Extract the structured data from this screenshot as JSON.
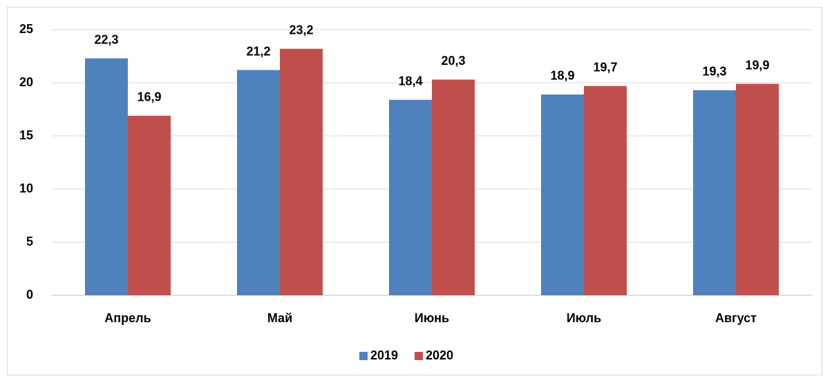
{
  "chart_data": {
    "type": "bar",
    "categories": [
      "Апрель",
      "Май",
      "Июнь",
      "Июль",
      "Август"
    ],
    "series": [
      {
        "name": "2019",
        "color": "#4f81bd",
        "values": [
          22.3,
          21.2,
          18.4,
          18.9,
          19.3
        ],
        "value_labels": [
          "22,3",
          "21,2",
          "18,4",
          "18,9",
          "19,3"
        ]
      },
      {
        "name": "2020",
        "color": "#c0504d",
        "values": [
          16.9,
          23.2,
          20.3,
          19.7,
          19.9
        ],
        "value_labels": [
          "16,9",
          "23,2",
          "20,3",
          "19,7",
          "19,9"
        ]
      }
    ],
    "ylim": [
      0,
      25
    ],
    "yticks": [
      0,
      5,
      10,
      15,
      20,
      25
    ],
    "grid": true,
    "legend": "bottom"
  }
}
